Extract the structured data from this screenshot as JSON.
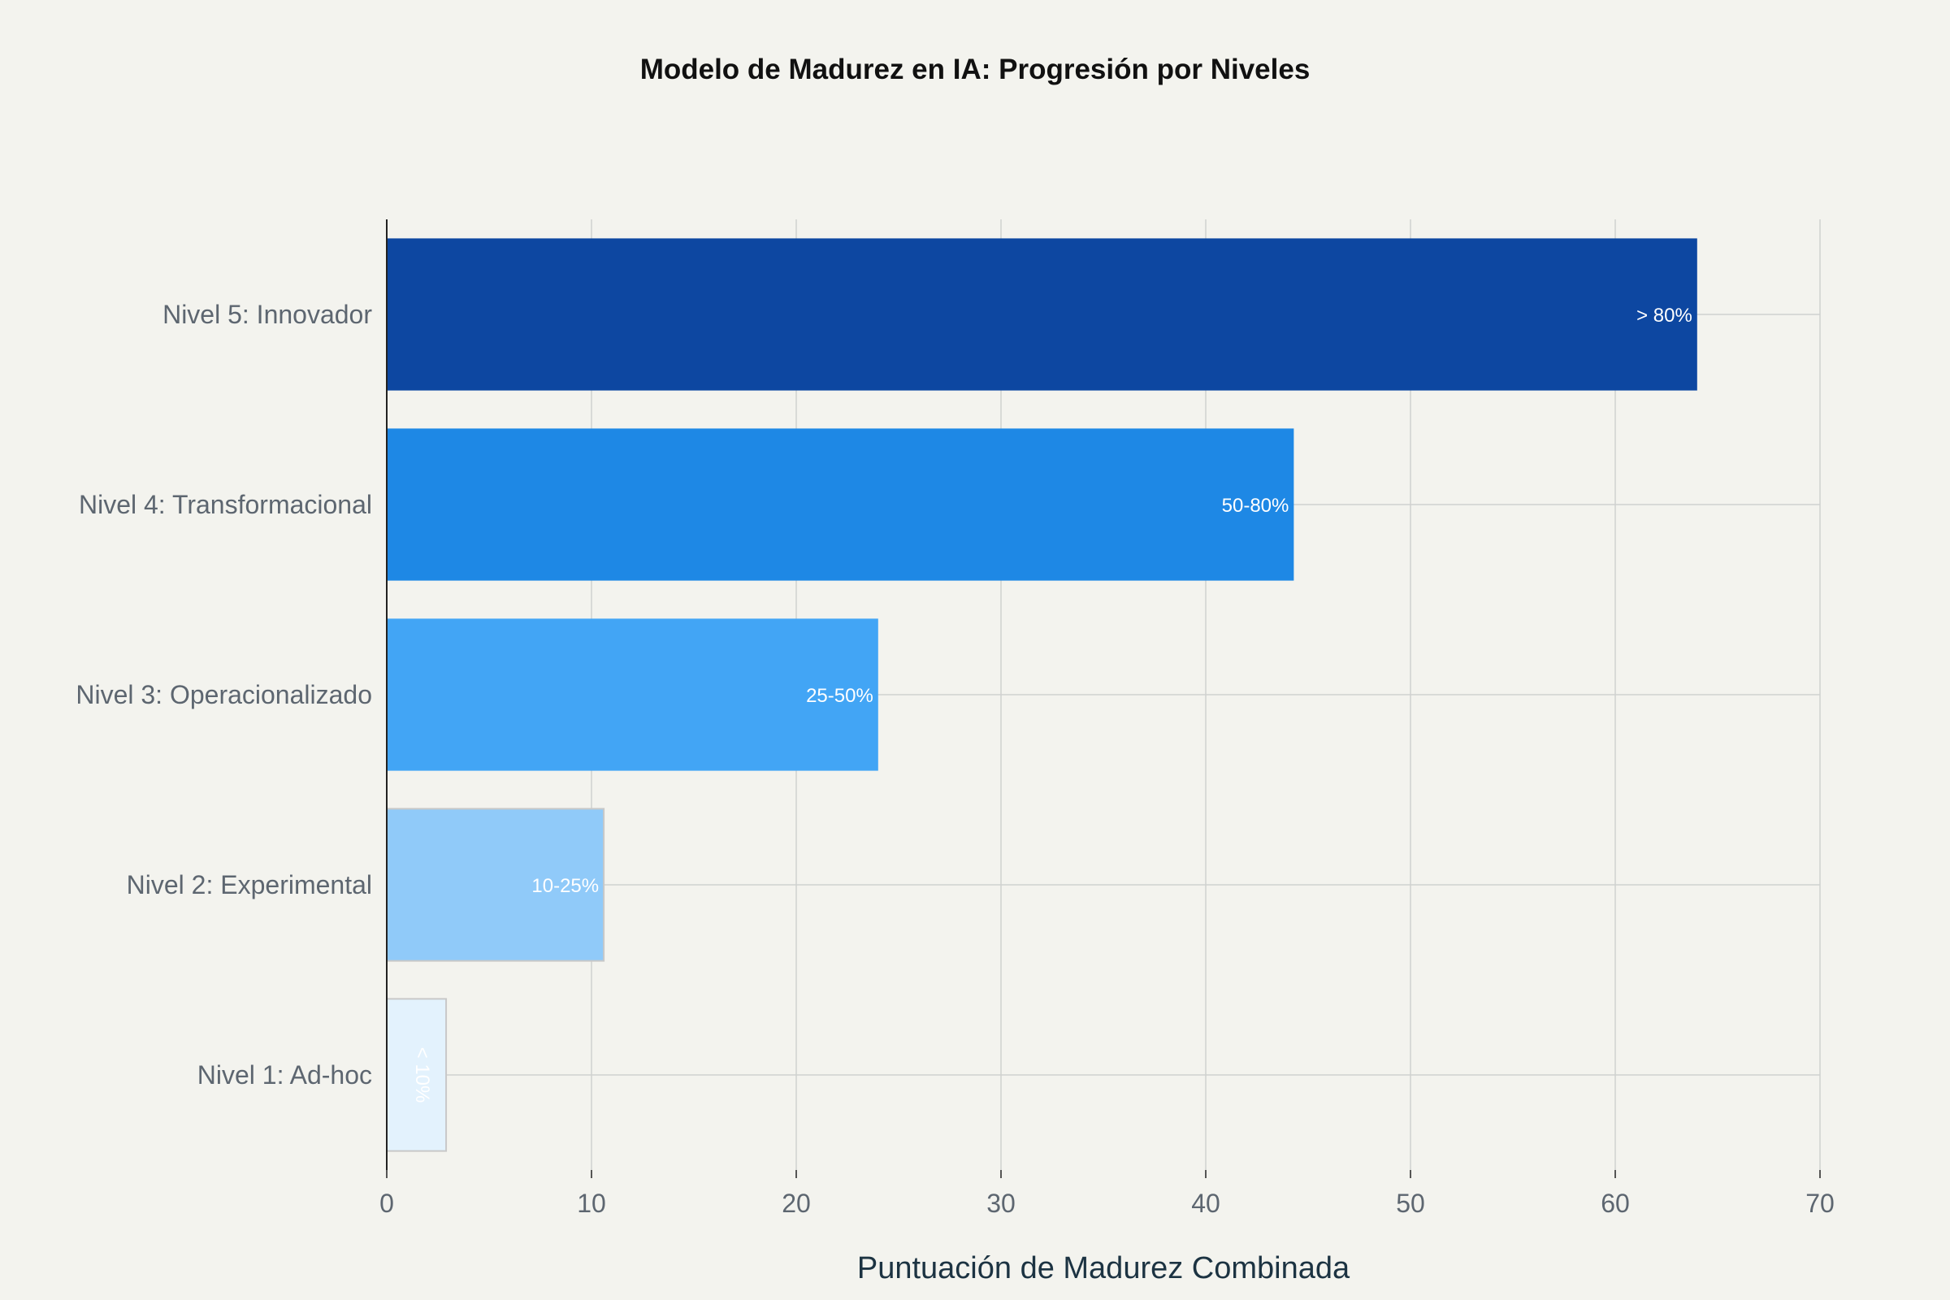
{
  "chart_data": {
    "type": "bar",
    "orientation": "horizontal",
    "title": "Modelo de Madurez en IA: Progresión por Niveles",
    "xlabel": "Puntuación de Madurez Combinada",
    "ylabel": "",
    "xlim": [
      0,
      70
    ],
    "xticks": [
      0,
      10,
      20,
      30,
      40,
      50,
      60,
      70
    ],
    "grid": true,
    "legend": "none",
    "categories": [
      "Nivel 5: Innovador",
      "Nivel 4: Transformacional",
      "Nivel 3: Operacionalizado",
      "Nivel 2: Experimental",
      "Nivel 1: Ad-hoc"
    ],
    "values": [
      64,
      44.3,
      24,
      10.6,
      2.9
    ],
    "bar_labels": [
      "> 80%",
      "50-80%",
      "25-50%",
      "10-25%",
      "< 10%"
    ],
    "bar_colors": [
      "#0d47a1",
      "#1e88e5",
      "#42a5f5",
      "#90caf9",
      "#e3f2fd"
    ]
  }
}
